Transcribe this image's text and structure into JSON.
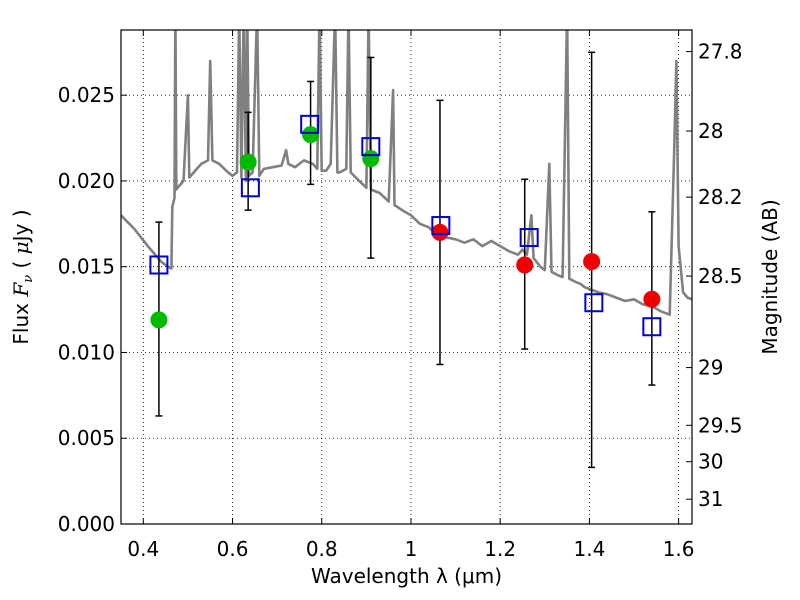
{
  "chart_data": {
    "type": "scatter",
    "x_axis": {
      "label": "Wavelength  λ (μm)",
      "range": [
        0.35,
        1.63
      ],
      "ticks": [
        0.4,
        0.6,
        0.8,
        1.0,
        1.2,
        1.4,
        1.6
      ],
      "tick_labels": [
        "0.4",
        "0.6",
        "0.8",
        "1",
        "1.2",
        "1.4",
        "1.6"
      ],
      "grid": true
    },
    "y_axis": {
      "label_parts": [
        "Flux  ",
        "F",
        "ν",
        "  ( ",
        "μ",
        "Jy )"
      ],
      "range": [
        0.0,
        0.0288
      ],
      "ticks": [
        0.0,
        0.005,
        0.01,
        0.015,
        0.02,
        0.025
      ],
      "tick_labels": [
        "0.000",
        "0.005",
        "0.010",
        "0.015",
        "0.020",
        "0.025"
      ],
      "grid": true
    },
    "y2_axis": {
      "label": "Magnitude (AB)",
      "ticks": [
        27.8,
        28.0,
        28.2,
        28.5,
        29.0,
        29.5,
        30.0,
        31.0
      ],
      "tick_labels": [
        "27.8",
        "28",
        "28.2",
        "28.5",
        "29",
        "29.5",
        "30",
        "31"
      ]
    },
    "series": [
      {
        "kind": "observed-green",
        "color": "#00bb00",
        "marker": "circle",
        "points": [
          {
            "x": 0.435,
            "y": 0.0119,
            "err_low": 0.0063,
            "err_high": 0.0176
          },
          {
            "x": 0.635,
            "y": 0.0211,
            "err_low": 0.0183,
            "err_high": 0.024
          },
          {
            "x": 0.775,
            "y": 0.0227,
            "err_low": 0.0198,
            "err_high": 0.0258
          },
          {
            "x": 0.91,
            "y": 0.0213,
            "err_low": 0.0155,
            "err_high": 0.0272
          }
        ]
      },
      {
        "kind": "observed-red",
        "color": "#ee0000",
        "marker": "circle",
        "points": [
          {
            "x": 1.065,
            "y": 0.017,
            "err_low": 0.0093,
            "err_high": 0.0247
          },
          {
            "x": 1.255,
            "y": 0.0151,
            "err_low": 0.0102,
            "err_high": 0.0201
          },
          {
            "x": 1.405,
            "y": 0.0153,
            "err_low": 0.0033,
            "err_high": 0.0275
          },
          {
            "x": 1.54,
            "y": 0.0131,
            "err_low": 0.0081,
            "err_high": 0.0182
          }
        ]
      },
      {
        "kind": "model-squares",
        "color": "#0000cc",
        "marker": "square-open",
        "points": [
          {
            "x": 0.435,
            "y": 0.0151
          },
          {
            "x": 0.64,
            "y": 0.0196
          },
          {
            "x": 0.773,
            "y": 0.0233
          },
          {
            "x": 0.91,
            "y": 0.022
          },
          {
            "x": 1.067,
            "y": 0.0174
          },
          {
            "x": 1.265,
            "y": 0.0167
          },
          {
            "x": 1.41,
            "y": 0.0129
          },
          {
            "x": 1.54,
            "y": 0.0115
          }
        ]
      },
      {
        "kind": "spectrum",
        "color": "#808080",
        "line": true,
        "points": [
          [
            0.35,
            0.018
          ],
          [
            0.38,
            0.0172
          ],
          [
            0.41,
            0.0162
          ],
          [
            0.44,
            0.0153
          ],
          [
            0.455,
            0.015
          ],
          [
            0.463,
            0.0149
          ],
          [
            0.465,
            0.0185
          ],
          [
            0.47,
            0.019
          ],
          [
            0.472,
            0.03
          ],
          [
            0.474,
            0.0195
          ],
          [
            0.48,
            0.0197
          ],
          [
            0.49,
            0.02
          ],
          [
            0.5,
            0.025
          ],
          [
            0.503,
            0.0202
          ],
          [
            0.52,
            0.0207
          ],
          [
            0.53,
            0.021
          ],
          [
            0.545,
            0.0212
          ],
          [
            0.55,
            0.027
          ],
          [
            0.555,
            0.0212
          ],
          [
            0.57,
            0.021
          ],
          [
            0.59,
            0.0205
          ],
          [
            0.6,
            0.0203
          ],
          [
            0.61,
            0.0205
          ],
          [
            0.615,
            0.03
          ],
          [
            0.62,
            0.0202
          ],
          [
            0.625,
            0.03
          ],
          [
            0.63,
            0.02
          ],
          [
            0.633,
            0.03
          ],
          [
            0.637,
            0.0203
          ],
          [
            0.645,
            0.0205
          ],
          [
            0.655,
            0.03
          ],
          [
            0.66,
            0.0203
          ],
          [
            0.67,
            0.0207
          ],
          [
            0.69,
            0.0208
          ],
          [
            0.71,
            0.0209
          ],
          [
            0.72,
            0.0218
          ],
          [
            0.725,
            0.021
          ],
          [
            0.74,
            0.0208
          ],
          [
            0.76,
            0.0212
          ],
          [
            0.78,
            0.021
          ],
          [
            0.79,
            0.0207
          ],
          [
            0.795,
            0.03
          ],
          [
            0.8,
            0.0206
          ],
          [
            0.81,
            0.0206
          ],
          [
            0.82,
            0.021
          ],
          [
            0.83,
            0.03
          ],
          [
            0.835,
            0.0205
          ],
          [
            0.84,
            0.0205
          ],
          [
            0.855,
            0.0207
          ],
          [
            0.86,
            0.03
          ],
          [
            0.865,
            0.0205
          ],
          [
            0.88,
            0.0201
          ],
          [
            0.9,
            0.0196
          ],
          [
            0.905,
            0.03
          ],
          [
            0.91,
            0.0195
          ],
          [
            0.93,
            0.0193
          ],
          [
            0.95,
            0.0188
          ],
          [
            0.96,
            0.0253
          ],
          [
            0.963,
            0.0186
          ],
          [
            0.98,
            0.0183
          ],
          [
            1.0,
            0.018
          ],
          [
            1.02,
            0.0175
          ],
          [
            1.04,
            0.0173
          ],
          [
            1.06,
            0.0168
          ],
          [
            1.08,
            0.0167
          ],
          [
            1.1,
            0.0166
          ],
          [
            1.12,
            0.0164
          ],
          [
            1.14,
            0.0166
          ],
          [
            1.16,
            0.0162
          ],
          [
            1.18,
            0.0165
          ],
          [
            1.2,
            0.0162
          ],
          [
            1.22,
            0.0159
          ],
          [
            1.24,
            0.0157
          ],
          [
            1.25,
            0.016
          ],
          [
            1.26,
            0.0157
          ],
          [
            1.27,
            0.018
          ],
          [
            1.275,
            0.0155
          ],
          [
            1.29,
            0.015
          ],
          [
            1.3,
            0.0148
          ],
          [
            1.31,
            0.021
          ],
          [
            1.315,
            0.0147
          ],
          [
            1.33,
            0.0145
          ],
          [
            1.34,
            0.0144
          ],
          [
            1.35,
            0.03
          ],
          [
            1.355,
            0.0143
          ],
          [
            1.37,
            0.0141
          ],
          [
            1.38,
            0.014
          ],
          [
            1.39,
            0.0138
          ],
          [
            1.4,
            0.0137
          ],
          [
            1.42,
            0.0135
          ],
          [
            1.44,
            0.0134
          ],
          [
            1.46,
            0.0132
          ],
          [
            1.48,
            0.013
          ],
          [
            1.5,
            0.0131
          ],
          [
            1.52,
            0.0128
          ],
          [
            1.54,
            0.0127
          ],
          [
            1.56,
            0.0124
          ],
          [
            1.58,
            0.0122
          ],
          [
            1.59,
            0.0218
          ],
          [
            1.595,
            0.027
          ],
          [
            1.6,
            0.0162
          ],
          [
            1.61,
            0.0135
          ],
          [
            1.62,
            0.0132
          ],
          [
            1.63,
            0.0131
          ]
        ]
      }
    ]
  }
}
